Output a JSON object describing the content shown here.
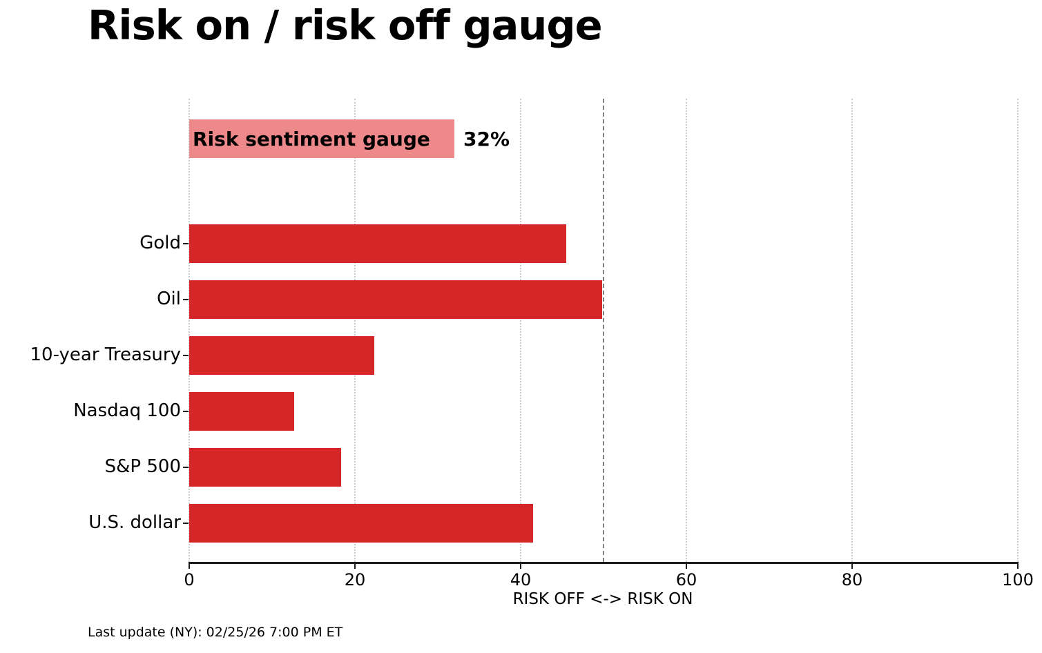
{
  "title": "Risk on / risk off gauge",
  "footer": "Last update (NY): 02/25/26 7:00 PM ET",
  "colors": {
    "bar_red": "#d62728",
    "gauge_pink": "#ee898b",
    "gridline": "#c9c9c9",
    "reference_line": "#7f7f7f",
    "axis": "#1c1c1c",
    "text": "#000000"
  },
  "chart_data": {
    "type": "bar",
    "orientation": "horizontal",
    "title": "Risk on / risk off gauge",
    "categories": [
      "Gold",
      "Oil",
      "10-year Treasury",
      "Nasdaq 100",
      "S&P 500",
      "U.S. dollar"
    ],
    "values": [
      45.5,
      49.8,
      22.3,
      12.7,
      18.3,
      41.5
    ],
    "gauge_series": {
      "label": "Risk sentiment gauge",
      "value": 32,
      "display": "32%"
    },
    "xlabel": "RISK OFF <-> RISK ON",
    "xlim": [
      0,
      100
    ],
    "xticks": [
      0,
      20,
      40,
      60,
      80,
      100
    ],
    "xtick_labels": [
      "0",
      "20",
      "40",
      "60",
      "80",
      "100"
    ],
    "reference_line_x": 50,
    "grid": "vertical-dotted",
    "legend": "none",
    "bar_color": "#d62728",
    "gauge_bar_color": "#ee898b",
    "footnote": "Last update (NY): 02/25/26 7:00 PM ET"
  }
}
